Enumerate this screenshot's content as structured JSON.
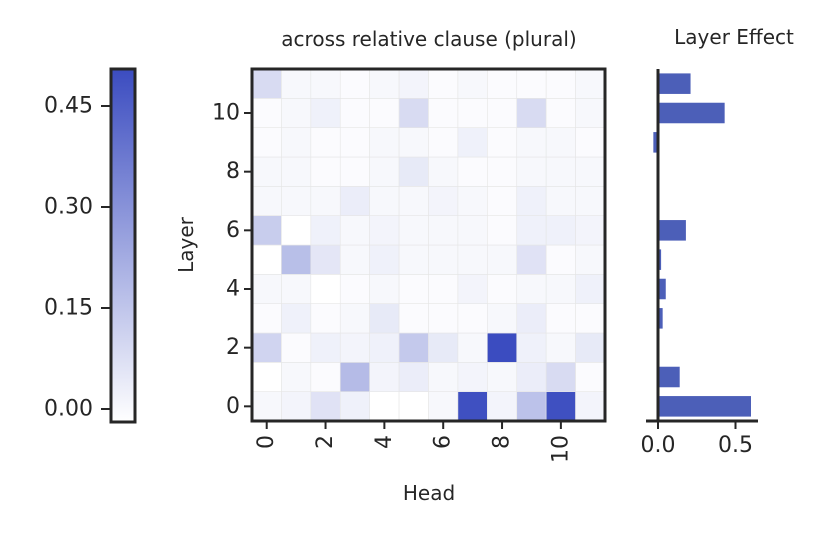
{
  "chart_data": [
    {
      "type": "heatmap",
      "title": "across relative clause (plural)",
      "xlabel": "Head",
      "ylabel": "Layer",
      "x_tick_labels": [
        "0",
        "2",
        "4",
        "6",
        "8",
        "10"
      ],
      "y_tick_labels": [
        "0",
        "2",
        "4",
        "6",
        "8",
        "10"
      ],
      "rows_layers": [
        0,
        1,
        2,
        3,
        4,
        5,
        6,
        7,
        8,
        9,
        10,
        11
      ],
      "cols_heads": [
        0,
        1,
        2,
        3,
        4,
        5,
        6,
        7,
        8,
        9,
        10,
        11
      ],
      "colorscale": {
        "low": "#ffffff",
        "high": "#3b4cc0",
        "negative": "#b40426"
      },
      "values": [
        [
          0.02,
          0.03,
          0.08,
          0.04,
          0.0,
          0.0,
          0.02,
          0.49,
          0.03,
          0.17,
          0.49,
          0.03
        ],
        [
          0.0,
          0.02,
          0.01,
          0.19,
          0.03,
          0.05,
          0.02,
          0.03,
          0.02,
          0.05,
          0.1,
          0.01
        ],
        [
          0.12,
          0.01,
          0.04,
          0.03,
          0.04,
          0.15,
          0.06,
          0.02,
          0.5,
          0.04,
          0.02,
          0.06
        ],
        [
          0.01,
          0.04,
          0.01,
          0.02,
          0.06,
          0.01,
          0.01,
          0.01,
          0.02,
          0.05,
          0.01,
          0.01
        ],
        [
          0.02,
          0.02,
          0.0,
          0.01,
          0.02,
          0.01,
          0.01,
          0.03,
          0.01,
          0.02,
          0.02,
          0.04
        ],
        [
          0.0,
          0.18,
          0.07,
          0.02,
          0.04,
          0.02,
          0.02,
          0.02,
          0.02,
          0.08,
          0.01,
          0.02
        ],
        [
          0.14,
          0.0,
          0.04,
          0.02,
          0.03,
          0.02,
          0.02,
          0.02,
          0.01,
          0.04,
          0.04,
          0.03
        ],
        [
          0.02,
          0.02,
          0.02,
          0.05,
          0.02,
          0.02,
          0.03,
          0.02,
          0.01,
          0.04,
          0.02,
          0.02
        ],
        [
          0.02,
          0.02,
          0.01,
          0.01,
          0.02,
          0.06,
          0.02,
          0.01,
          0.01,
          0.02,
          0.02,
          0.02
        ],
        [
          0.01,
          0.02,
          0.01,
          0.01,
          0.02,
          0.02,
          0.01,
          0.04,
          0.01,
          0.02,
          0.02,
          0.01
        ],
        [
          0.01,
          0.02,
          0.04,
          0.01,
          0.01,
          0.1,
          0.01,
          0.01,
          0.01,
          0.1,
          0.01,
          0.02
        ],
        [
          0.1,
          0.02,
          0.02,
          0.01,
          0.02,
          0.03,
          0.01,
          0.02,
          0.01,
          0.01,
          0.01,
          0.02
        ]
      ]
    },
    {
      "type": "bar",
      "orientation": "horizontal",
      "title": "Layer Effect",
      "xlim": [
        -0.05,
        0.63
      ],
      "x_tick_labels": [
        "0.0",
        "0.5"
      ],
      "x_ticks": [
        0.0,
        0.5
      ],
      "color": "#4c5fb8",
      "categories": [
        0,
        1,
        2,
        3,
        4,
        5,
        6,
        7,
        8,
        9,
        10,
        11
      ],
      "values": [
        0.6,
        0.14,
        0.0,
        0.03,
        0.05,
        0.02,
        0.18,
        0.0,
        0.0,
        -0.03,
        0.43,
        0.21
      ]
    },
    {
      "type": "colorbar",
      "range": [
        -0.02,
        0.5
      ],
      "tick_values": [
        0.0,
        0.15,
        0.3,
        0.45
      ],
      "tick_labels": [
        "0.00",
        "0.15",
        "0.30",
        "0.45"
      ]
    }
  ]
}
